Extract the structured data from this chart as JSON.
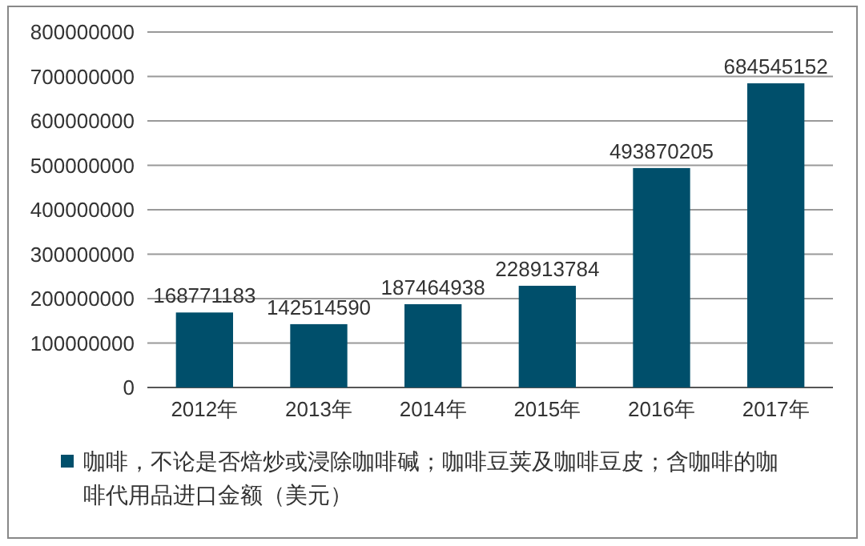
{
  "chart_data": {
    "type": "bar",
    "categories": [
      "2012年",
      "2013年",
      "2014年",
      "2015年",
      "2016年",
      "2017年"
    ],
    "series": [
      {
        "name": "咖啡，不论是否焙炒或浸除咖啡碱；咖啡豆荚及咖啡豆皮；含咖啡的咖啡代用品进口金额（美元）",
        "color": "#004f6b",
        "values": [
          168771183,
          142514590,
          187464938,
          228913784,
          493870205,
          684545152
        ]
      }
    ],
    "ylim": [
      0,
      800000000
    ],
    "yticks": [
      0,
      100000000,
      200000000,
      300000000,
      400000000,
      500000000,
      600000000,
      700000000,
      800000000
    ],
    "grid": "y",
    "legend": "bottom",
    "data_labels": true
  }
}
